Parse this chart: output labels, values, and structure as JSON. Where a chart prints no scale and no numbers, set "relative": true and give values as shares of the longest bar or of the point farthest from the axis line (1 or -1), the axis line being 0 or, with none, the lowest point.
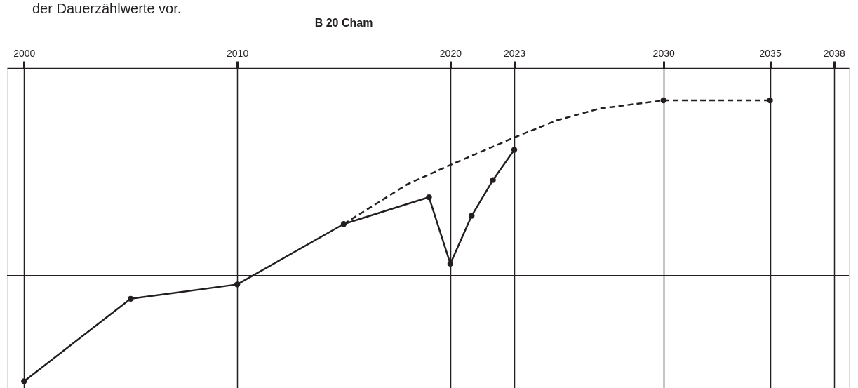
{
  "chart_data": {
    "type": "line",
    "title": "B 20 Cham",
    "annotations": [
      "der Dauerzählwerte vor."
    ],
    "relative": true,
    "xlim": [
      1999.2,
      2038.7
    ],
    "xticks": [
      2000,
      2010,
      2020,
      2023,
      2030,
      2035,
      2038
    ],
    "grid": "x",
    "series": [
      {
        "color": "#231f20",
        "marker": "circle",
        "line_style": "solid",
        "x": [
          2000,
          2005,
          2010,
          2015,
          2019,
          2020,
          2021,
          2022,
          2023
        ],
        "values": [
          -0.604,
          -0.133,
          -0.051,
          0.294,
          0.447,
          0.067,
          0.341,
          0.545,
          0.718
        ]
      },
      {
        "color": "#231f20",
        "marker": "none",
        "line_style": "dashed",
        "x": [
          2015,
          2018,
          2020,
          2023,
          2025,
          2027,
          2030,
          2035
        ],
        "values": [
          0.294,
          0.522,
          0.631,
          0.788,
          0.886,
          0.953,
          1,
          1
        ]
      },
      {
        "type": "scatter",
        "color": "#231f20",
        "marker": "circle",
        "x": [
          2030,
          2035
        ],
        "values": [
          1,
          1
        ]
      }
    ]
  }
}
